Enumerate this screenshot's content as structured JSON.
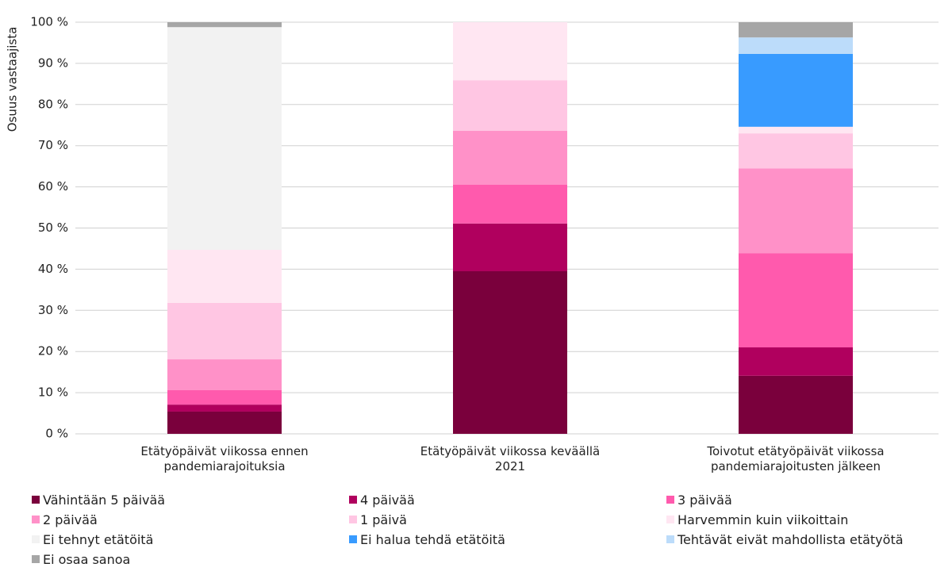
{
  "chart_data": {
    "type": "stacked-bar",
    "y_label": "Osuus vastaajista",
    "categories": [
      "Etätyöpäivät viikossa ennen pandemiarajoituksia",
      "Etätyöpäivät viikossa keväällä 2021",
      "Toivotut etätyöpäivät viikossa pandemiarajoitusten jälkeen"
    ],
    "series": [
      {
        "name": "Vähintään 5 päivää",
        "color": "#7a003c",
        "values": [
          5.4,
          39.5,
          14.1
        ]
      },
      {
        "name": "4 päivää",
        "color": "#b0005e",
        "values": [
          1.7,
          11.6,
          6.9
        ]
      },
      {
        "name": "3 päivää",
        "color": "#ff5aad",
        "values": [
          3.5,
          9.4,
          22.9
        ]
      },
      {
        "name": "2 päivää",
        "color": "#ff91c8",
        "values": [
          7.5,
          13.1,
          20.6
        ]
      },
      {
        "name": "1 päivä",
        "color": "#ffc6e3",
        "values": [
          13.7,
          12.3,
          8.5
        ]
      },
      {
        "name": "Harvemmin kuin viikoittain",
        "color": "#ffe6f2",
        "values": [
          12.9,
          14.1,
          1.6
        ]
      },
      {
        "name": "Ei tehnyt etätöitä",
        "color": "#f2f2f2",
        "values": [
          54.1,
          0,
          0
        ]
      },
      {
        "name": "Ei halua tehdä etätöitä",
        "color": "#389bff",
        "values": [
          0,
          0,
          17.7
        ]
      },
      {
        "name": "Tehtävät eivät mahdollista etätyötä",
        "color": "#bcdcfa",
        "values": [
          0,
          0,
          4.0
        ]
      },
      {
        "name": "Ei osaa sanoa",
        "color": "#a6a6a6",
        "values": [
          1.2,
          0,
          3.7
        ]
      }
    ],
    "ylim": [
      0,
      100
    ],
    "yticks": [
      {
        "value": 0,
        "label": "0 %"
      },
      {
        "value": 10,
        "label": "10 %"
      },
      {
        "value": 20,
        "label": "20 %"
      },
      {
        "value": 30,
        "label": "30 %"
      },
      {
        "value": 40,
        "label": "40 %"
      },
      {
        "value": 50,
        "label": "50 %"
      },
      {
        "value": 60,
        "label": "60 %"
      },
      {
        "value": 70,
        "label": "70 %"
      },
      {
        "value": 80,
        "label": "80 %"
      },
      {
        "value": 90,
        "label": "90 %"
      },
      {
        "value": 100,
        "label": "100 %"
      }
    ],
    "grid": true
  }
}
